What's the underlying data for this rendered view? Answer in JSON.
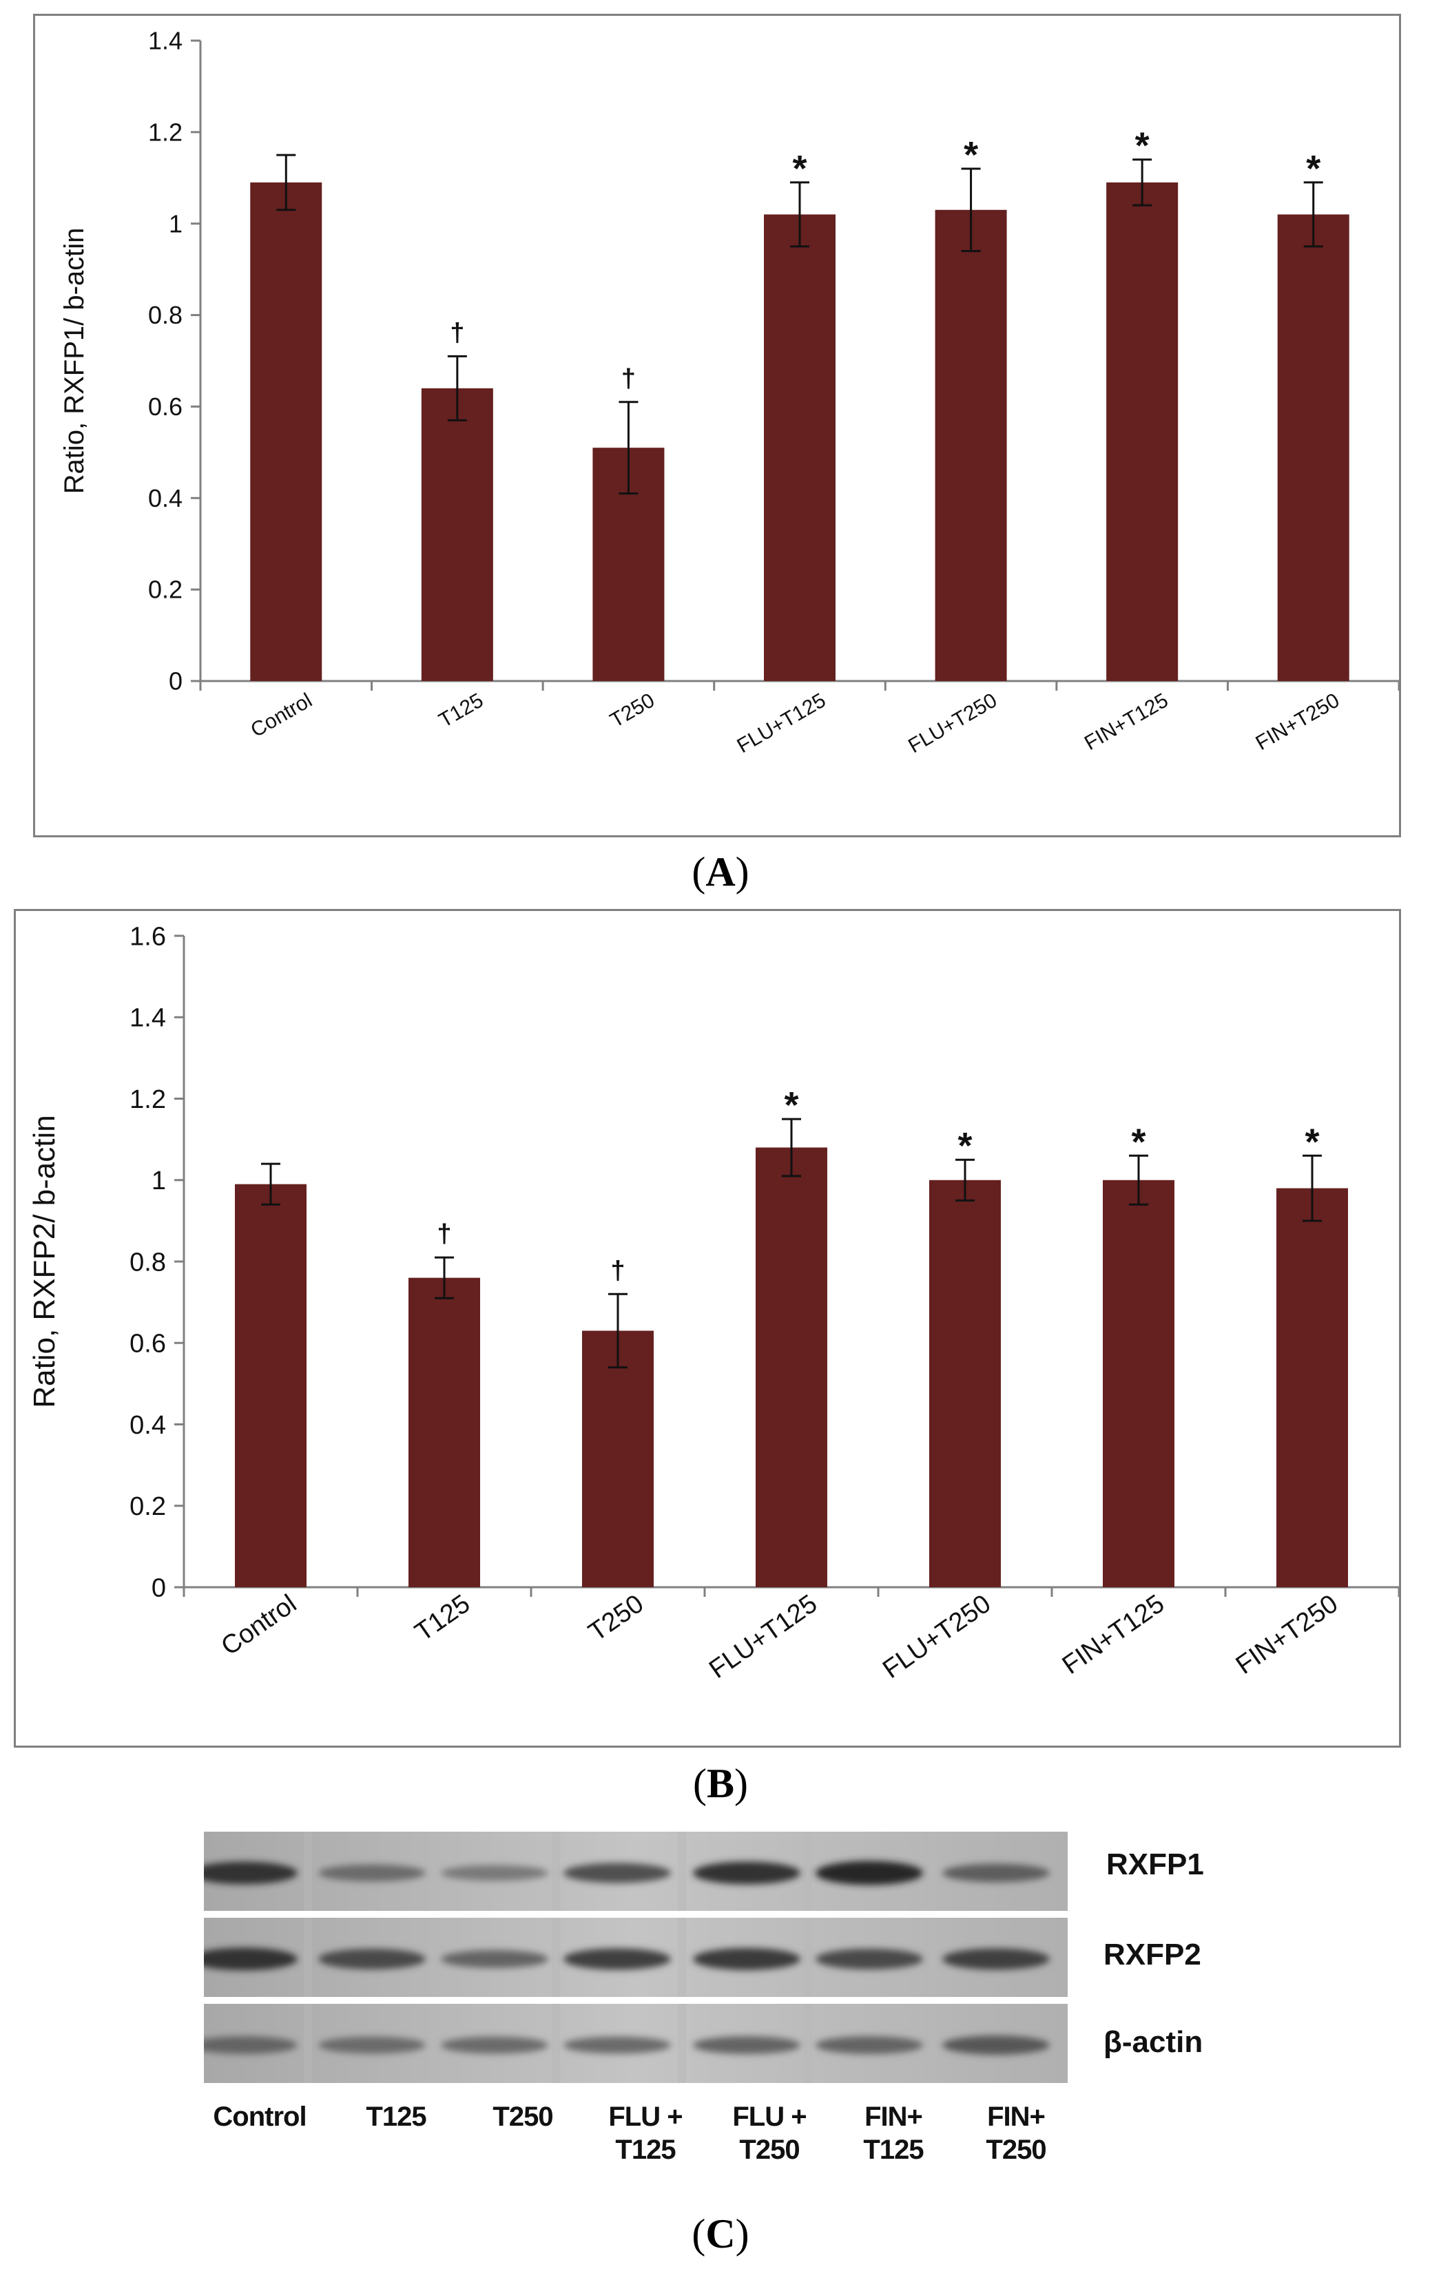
{
  "panels": {
    "a_label": "A",
    "b_label": "B",
    "c_label": "C"
  },
  "chart_data": [
    {
      "id": "A",
      "type": "bar",
      "title": "",
      "xlabel": "",
      "ylabel": "Ratio, RXFP1/ b-actin",
      "ylim": [
        0,
        1.4
      ],
      "yticks": [
        0,
        0.2,
        0.4,
        0.6,
        0.8,
        1,
        1.2,
        1.4
      ],
      "categories": [
        "Control",
        "T125",
        "T250",
        "FLU+T125",
        "FLU+T250",
        "FIN+T125",
        "FIN+T250"
      ],
      "values": [
        1.09,
        0.64,
        0.51,
        1.02,
        1.03,
        1.09,
        1.02
      ],
      "errors": [
        0.06,
        0.07,
        0.1,
        0.07,
        0.09,
        0.05,
        0.07
      ],
      "annotations": [
        "",
        "†",
        "†",
        "*",
        "*",
        "*",
        "*"
      ],
      "bar_color": "#652020",
      "grid": false
    },
    {
      "id": "B",
      "type": "bar",
      "title": "",
      "xlabel": "",
      "ylabel": "Ratio, RXFP2/ b-actin",
      "ylim": [
        0,
        1.6
      ],
      "yticks": [
        0,
        0.2,
        0.4,
        0.6,
        0.8,
        1,
        1.2,
        1.4,
        1.6
      ],
      "categories": [
        "Control",
        "T125",
        "T250",
        "FLU+T125",
        "FLU+T250",
        "FIN+T125",
        "FIN+T250"
      ],
      "values": [
        0.99,
        0.76,
        0.63,
        1.08,
        1.0,
        1.0,
        0.98
      ],
      "errors": [
        0.05,
        0.05,
        0.09,
        0.07,
        0.05,
        0.06,
        0.08
      ],
      "annotations": [
        "",
        "†",
        "†",
        "*",
        "*",
        "*",
        "*"
      ],
      "bar_color": "#652020",
      "grid": false
    }
  ],
  "blot": {
    "rows": [
      {
        "label": "RXFP1",
        "intensity": [
          0.85,
          0.45,
          0.35,
          0.65,
          0.85,
          0.95,
          0.55
        ]
      },
      {
        "label": "RXFP2",
        "intensity": [
          0.85,
          0.7,
          0.5,
          0.75,
          0.8,
          0.7,
          0.75
        ]
      },
      {
        "label": "β-actin",
        "intensity": [
          0.5,
          0.45,
          0.45,
          0.45,
          0.5,
          0.5,
          0.6
        ]
      }
    ],
    "lanes": [
      [
        "Control"
      ],
      [
        "T125"
      ],
      [
        "T250"
      ],
      [
        "FLU +",
        "T125"
      ],
      [
        "FLU +",
        "T250"
      ],
      [
        "FIN+",
        "T125"
      ],
      [
        "FIN+",
        "T250"
      ]
    ]
  }
}
